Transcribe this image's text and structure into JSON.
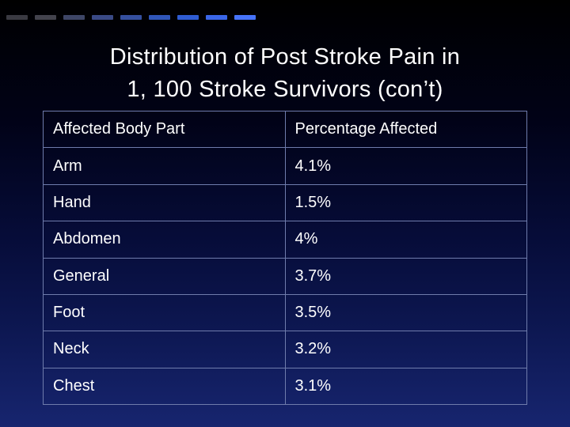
{
  "slide": {
    "title_line1": "Distribution of Post Stroke Pain in",
    "title_line2": "1, 100 Stroke Survivors (con’t)"
  },
  "table": {
    "headers": [
      "Affected Body Part",
      "Percentage Affected"
    ],
    "rows": [
      [
        "Arm",
        "4.1%"
      ],
      [
        "Hand",
        "1.5%"
      ],
      [
        "Abdomen",
        "4%"
      ],
      [
        "General",
        "3.7%"
      ],
      [
        "Foot",
        "3.5%"
      ],
      [
        "Neck",
        "3.2%"
      ],
      [
        "Chest",
        "3.1%"
      ]
    ]
  },
  "colors": {
    "background_top": "#000000",
    "background_bottom": "#17256f",
    "table_border": "#6f7cac",
    "text": "#ffffff",
    "accent_blue": "#4673fa"
  }
}
